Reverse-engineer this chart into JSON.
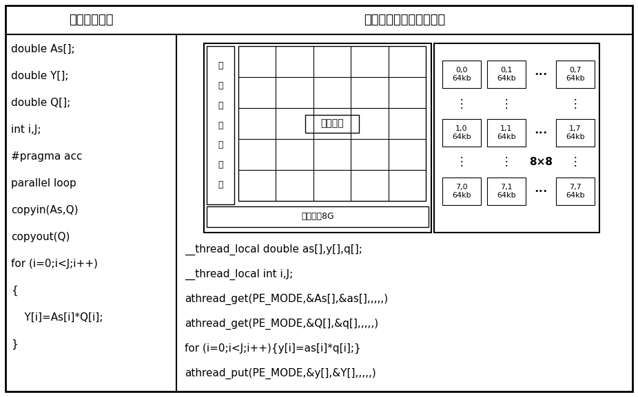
{
  "title_left": "主核控制代码",
  "title_right": "众核加速原理及代码实现",
  "left_code": [
    "double As[];",
    "double Y[];",
    "double Q[];",
    "int i,J;",
    "#pragma acc",
    "parallel loop",
    "copyin(As,Q)",
    "copyout(Q)",
    "for (i=0;i<J;i++)",
    "{",
    "    Y[i]=As[i]*Q[i];",
    "}"
  ],
  "right_code": [
    "__thread_local double as[],y[],q[];",
    "__thread_local int i,J;",
    "athread_get(PE_MODE,&As[],&as[],,,,,)",
    "athread_get(PE_MODE,&Q[],&q[],,,,,)",
    "for (i=0;i<J;i++){y[i]=as[i]*q[i];}",
    "athread_put(PE_MODE,&y[],&Y[],,,,,)"
  ],
  "mem_label": "核组内存8G",
  "controller_label_chars": [
    "主",
    "核",
    "内",
    "存",
    "控",
    "制",
    "器"
  ],
  "core_array_label": "从核阵列",
  "grid_rows": 5,
  "grid_cols": 5,
  "size_label": "8×8",
  "bg_color": "#ffffff",
  "border_color": "#000000",
  "text_color": "#000000",
  "font_size_title": 13,
  "font_size_code": 11,
  "font_size_pe": 8,
  "font_size_label": 9,
  "font_size_ctrl": 9
}
